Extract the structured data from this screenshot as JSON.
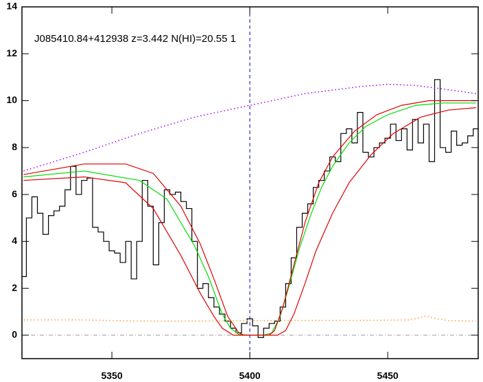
{
  "chart_data": {
    "type": "line",
    "title": "J085410.84+412938 z=3.442 N(HI)=20.55 1",
    "xlim": [
      5317.4,
      5482.8
    ],
    "ylim": [
      -1,
      14
    ],
    "xticks": [
      5350,
      5400,
      5450
    ],
    "yticks": [
      0,
      2,
      4,
      6,
      8,
      10,
      12,
      14
    ],
    "vline": {
      "value": 5400,
      "color": "#0000cc"
    },
    "hline": {
      "value": 0,
      "color": "#999999"
    },
    "series": [
      {
        "style": "step",
        "color": "#000000",
        "x": [
          5318,
          5320,
          5322,
          5324,
          5326,
          5328,
          5330,
          5332,
          5334,
          5336,
          5338,
          5340,
          5342,
          5344,
          5346,
          5348,
          5350,
          5352,
          5354,
          5356,
          5358,
          5360,
          5362,
          5364,
          5366,
          5368,
          5370,
          5372,
          5374,
          5376,
          5378,
          5380,
          5382,
          5384,
          5386,
          5388,
          5390,
          5392,
          5394,
          5396,
          5398,
          5400,
          5402,
          5404,
          5406,
          5408,
          5410,
          5412,
          5414,
          5416,
          5418,
          5420,
          5422,
          5424,
          5426,
          5428,
          5430,
          5432,
          5434,
          5436,
          5438,
          5440,
          5442,
          5444,
          5446,
          5448,
          5450,
          5452,
          5454,
          5456,
          5458,
          5460,
          5462,
          5464,
          5466,
          5468,
          5470,
          5472,
          5474,
          5476,
          5478,
          5480,
          5482
        ],
        "values": [
          2.5,
          5.0,
          5.9,
          5.2,
          4.3,
          5.1,
          5.3,
          5.5,
          6.2,
          7.2,
          6.0,
          6.6,
          6.7,
          4.6,
          4.4,
          4.0,
          3.6,
          3.5,
          3.1,
          4.0,
          2.4,
          4.0,
          6.6,
          5.5,
          3.0,
          4.8,
          6.2,
          6.0,
          6.1,
          5.7,
          5.4,
          4.0,
          2.0,
          2.2,
          1.6,
          1.2,
          0.9,
          0.6,
          0.3,
          0.1,
          0.5,
          0.7,
          0.4,
          -0.1,
          0.3,
          0.5,
          0.6,
          1.2,
          2.2,
          3.3,
          4.6,
          5.2,
          5.6,
          6.3,
          6.6,
          7.0,
          7.6,
          7.4,
          8.6,
          8.8,
          8.2,
          9.5,
          7.8,
          7.6,
          8.0,
          8.2,
          8.4,
          9.0,
          8.3,
          8.8,
          7.9,
          9.2,
          8.2,
          9.0,
          7.4,
          10.9,
          8.0,
          7.8,
          8.7,
          8.1,
          8.2,
          8.5,
          8.8
        ]
      },
      {
        "style": "line",
        "color": "#00dd00",
        "x": [
          5318,
          5340,
          5360,
          5370,
          5380,
          5385,
          5390,
          5393,
          5396,
          5400,
          5405,
          5408,
          5411,
          5414,
          5418,
          5422,
          5426,
          5430,
          5436,
          5442,
          5450,
          5460,
          5470,
          5482
        ],
        "values": [
          6.75,
          7.0,
          6.6,
          5.8,
          3.8,
          2.5,
          0.9,
          0.3,
          0.03,
          0,
          0,
          0.1,
          0.8,
          2.0,
          3.7,
          5.1,
          6.3,
          7.2,
          8.2,
          8.9,
          9.4,
          9.8,
          9.9,
          9.9
        ]
      },
      {
        "style": "line",
        "color": "#dd0000",
        "x": [
          5318,
          5340,
          5355,
          5365,
          5375,
          5382,
          5387,
          5392,
          5396,
          5398,
          5407,
          5409,
          5412,
          5416,
          5420,
          5425,
          5430,
          5438,
          5446,
          5455,
          5465,
          5482
        ],
        "values": [
          6.85,
          7.3,
          7.3,
          6.9,
          5.5,
          3.9,
          2.4,
          0.8,
          0.1,
          0,
          0,
          0.2,
          1.2,
          3.0,
          4.8,
          6.5,
          7.6,
          8.7,
          9.4,
          9.8,
          10.0,
          10.0
        ]
      },
      {
        "style": "line",
        "color": "#dd0000",
        "x": [
          5318,
          5340,
          5355,
          5365,
          5375,
          5382,
          5387,
          5390,
          5394,
          5410,
          5413,
          5416,
          5420,
          5424,
          5430,
          5436,
          5444,
          5452,
          5462,
          5472,
          5482
        ],
        "values": [
          6.6,
          6.75,
          6.5,
          5.4,
          3.4,
          1.8,
          0.8,
          0.3,
          0,
          0,
          0.2,
          0.9,
          2.2,
          3.6,
          5.2,
          6.5,
          7.7,
          8.6,
          9.3,
          9.6,
          9.7
        ]
      },
      {
        "style": "dotted",
        "color": "#9900ff",
        "x": [
          5318,
          5340,
          5360,
          5380,
          5400,
          5420,
          5440,
          5450,
          5460,
          5470,
          5482
        ],
        "values": [
          7.0,
          7.8,
          8.6,
          9.3,
          9.8,
          10.3,
          10.6,
          10.7,
          10.65,
          10.5,
          10.3
        ]
      },
      {
        "style": "dotted",
        "color": "#ff9933",
        "x": [
          5318,
          5340,
          5360,
          5380,
          5400,
          5420,
          5440,
          5458,
          5462,
          5464,
          5467,
          5472,
          5482
        ],
        "values": [
          0.65,
          0.65,
          0.6,
          0.6,
          0.62,
          0.63,
          0.63,
          0.65,
          0.75,
          0.82,
          0.72,
          0.62,
          0.6
        ]
      }
    ]
  }
}
